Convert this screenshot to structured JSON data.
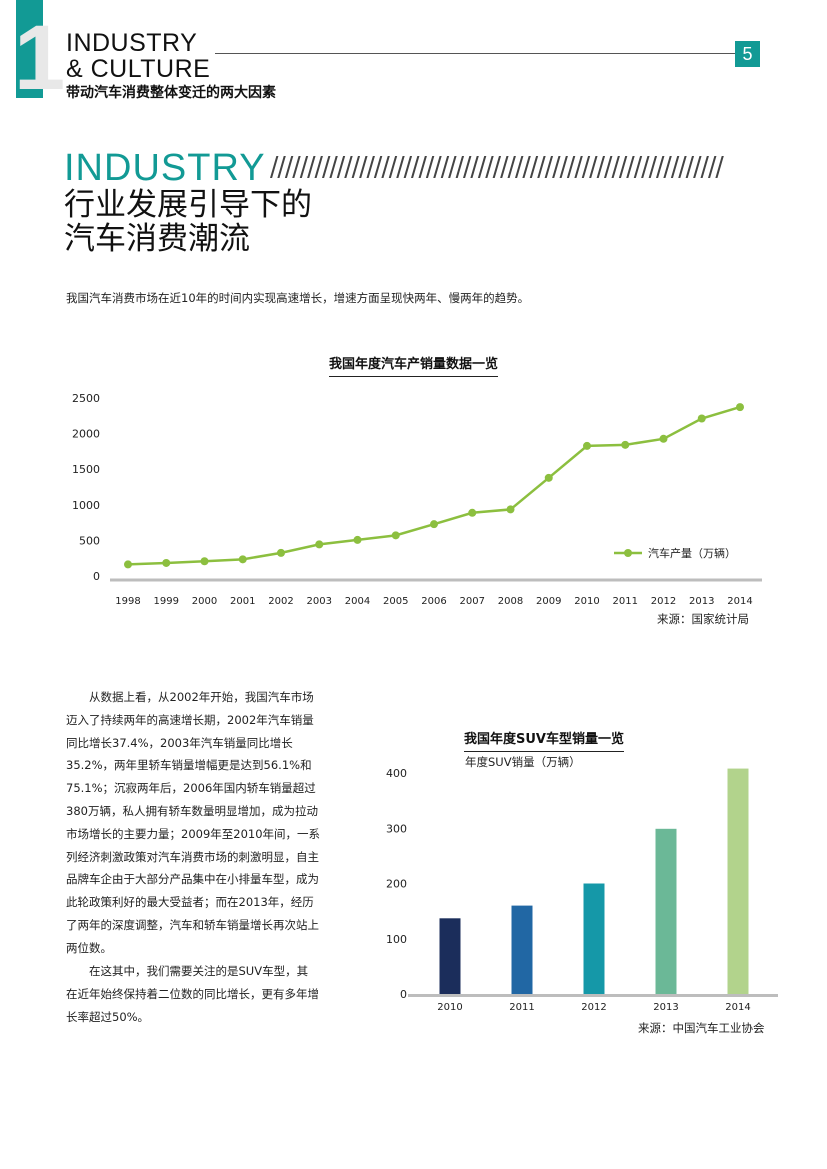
{
  "header": {
    "section_number": "1",
    "section_line1": "INDUSTRY",
    "section_line2": "& CULTURE",
    "section_subtitle": "带动汽车消费整体变迁的两大因素",
    "page_number": "5"
  },
  "section": {
    "title_en": "INDUSTRY",
    "hatch": "/////////////////////////////////////////////////////////////",
    "title_cn_line1": "行业发展引导下的",
    "title_cn_line2": "汽车消费潮流"
  },
  "intro": "我国汽车消费市场在近10年的时间内实现高速增长，增速方面呈现快两年、慢两年的趋势。",
  "body": {
    "paragraph1_lines": [
      "从数据上看，从2002年开始，我国汽车市场",
      "迈入了持续两年的高速增长期，2002年汽车销量",
      "同比增长37.4%，2003年汽车销量同比增长",
      "35.2%，两年里轿车销量增幅更是达到56.1%和",
      "75.1%；沉寂两年后，2006年国内轿车销量超过",
      "380万辆，私人拥有轿车数量明显增加，成为拉动",
      "市场增长的主要力量；2009年至2010年间，一系",
      "列经济刺激政策对汽车消费市场的刺激明显，自主",
      "品牌车企由于大部分产品集中在小排量车型，成为",
      "此轮政策利好的最大受益者；而在2013年，经历",
      "了两年的深度调整，汽车和轿车销量增长再次站上",
      "两位数。"
    ],
    "paragraph2_lines": [
      "在这其中，我们需要关注的是SUV车型，其",
      "在近年始终保持着二位数的同比增长，更有多年增",
      "长率超过50%。"
    ]
  },
  "chart_data": [
    {
      "type": "line",
      "title": "我国年度汽车产销量数据一览",
      "x": [
        "1998",
        "1999",
        "2000",
        "2001",
        "2002",
        "2003",
        "2004",
        "2005",
        "2006",
        "2007",
        "2008",
        "2009",
        "2010",
        "2011",
        "2012",
        "2013",
        "2014"
      ],
      "series": [
        {
          "name": "汽车产量（万辆）",
          "values": [
            163,
            183,
            207,
            234,
            325,
            444,
            507,
            571,
            728,
            888,
            935,
            1379,
            1827,
            1842,
            1927,
            2212,
            2372
          ]
        }
      ],
      "yticks": [
        "2500",
        "2000",
        "1500",
        "1000",
        "500",
        "0"
      ],
      "ylim": [
        0,
        2500
      ],
      "legend_position": "right",
      "source": "来源：国家统计局",
      "color": "#8cbf3f"
    },
    {
      "type": "bar",
      "title": "我国年度SUV车型销量一览",
      "ylabel": "年度SUV销量（万辆）",
      "categories": [
        "2010",
        "2011",
        "2012",
        "2013",
        "2014"
      ],
      "values": [
        137,
        160,
        200,
        299,
        408
      ],
      "yticks": [
        "400",
        "300",
        "200",
        "100",
        "0"
      ],
      "ylim": [
        0,
        400
      ],
      "colors": [
        "#1b2d5b",
        "#2167a4",
        "#1598a8",
        "#6bb897",
        "#b2d38c"
      ],
      "source": "来源：中国汽车工业协会"
    }
  ]
}
